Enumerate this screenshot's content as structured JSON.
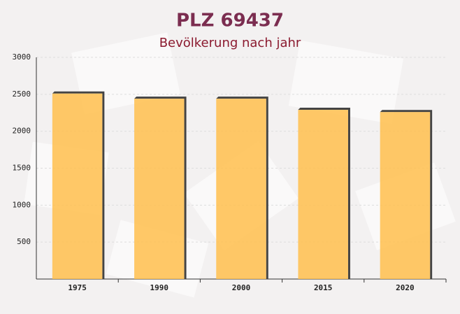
{
  "chart_data": {
    "type": "bar",
    "title": "PLZ 69437",
    "subtitle": "Bevölkerung nach jahr",
    "categories": [
      "1975",
      "1990",
      "2000",
      "2015",
      "2020"
    ],
    "values": [
      2510,
      2440,
      2440,
      2290,
      2260
    ],
    "color": "#ffc04d",
    "ylim": [
      0,
      3000
    ],
    "yticks": [
      500,
      1000,
      1500,
      2000,
      2500,
      3000
    ],
    "grid": true
  }
}
